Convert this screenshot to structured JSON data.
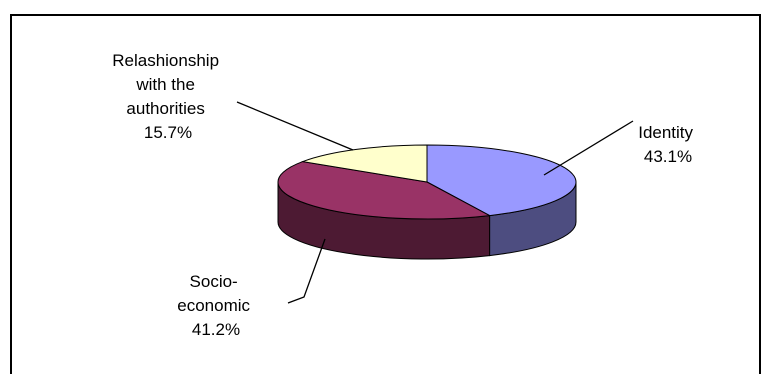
{
  "chart_data": {
    "type": "pie",
    "style": "3d",
    "slices": [
      {
        "label_lines": [
          "Identity"
        ],
        "value": 43.1,
        "value_label": "43.1%",
        "color": "#9999ff"
      },
      {
        "label_lines": [
          "Socio-",
          "economic"
        ],
        "value": 41.2,
        "value_label": "41.2%",
        "color": "#993366"
      },
      {
        "label_lines": [
          "Relashionship",
          "with the",
          "authorities"
        ],
        "value": 15.7,
        "value_label": "15.7%",
        "color": "#ffffcc"
      }
    ]
  }
}
